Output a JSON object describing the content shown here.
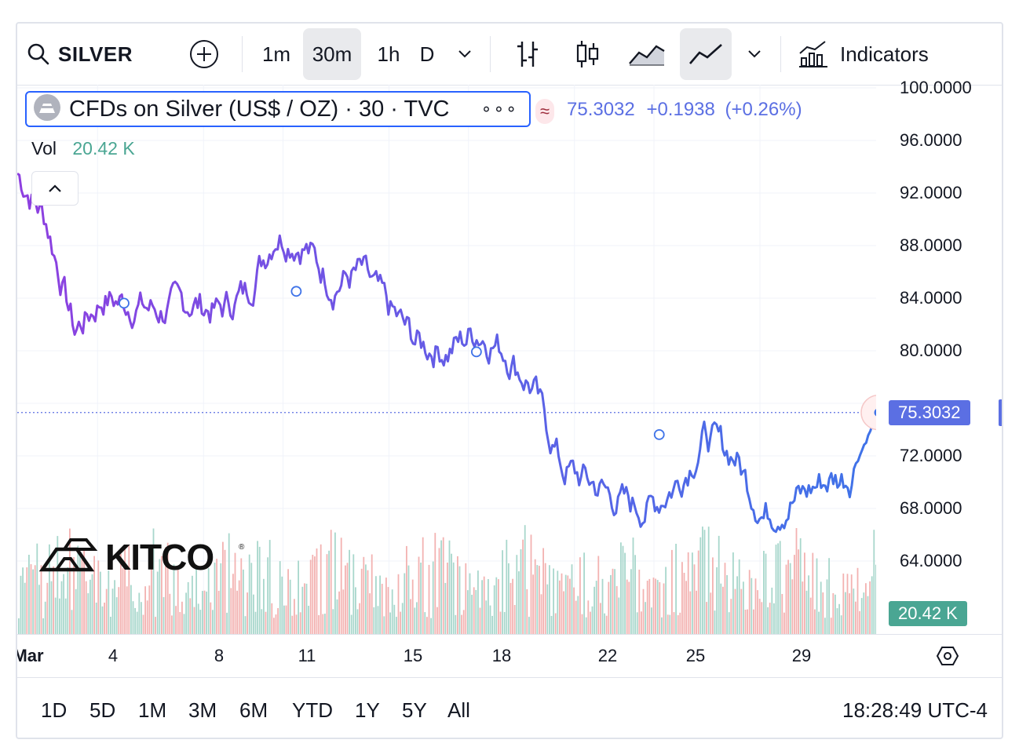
{
  "toolbar": {
    "symbol": "SILVER",
    "intervals": [
      "1m",
      "30m",
      "1h",
      "D"
    ],
    "active_interval": "30m",
    "indicators_label": "Indicators"
  },
  "legend": {
    "title": "CFDs on Silver (US$ / OZ) · 30 · TVC",
    "last": "75.3032",
    "change": "+0.1938",
    "change_pct": "(+0.26%)",
    "vol_label": "Vol",
    "vol_value": "20.42 K"
  },
  "price_scale": {
    "labels": [
      "100.0000",
      "96.0000",
      "92.0000",
      "88.0000",
      "84.0000",
      "80.0000",
      "72.0000",
      "68.0000",
      "64.0000"
    ],
    "last_price_badge": "75.3032",
    "volume_badge": "20.42 K"
  },
  "time_axis": {
    "labels": [
      "Mar",
      "4",
      "8",
      "11",
      "15",
      "18",
      "22",
      "25",
      "29"
    ]
  },
  "ranges": [
    "1D",
    "5D",
    "1M",
    "3M",
    "6M",
    "YTD",
    "1Y",
    "5Y",
    "All"
  ],
  "clock": "18:28:49 UTC-4",
  "watermark": "KITCO",
  "colors": {
    "line_start": "#8e3fe0",
    "line_end": "#3f73e8",
    "last_badge": "#5b6fe3",
    "volume_badge": "#4aa693",
    "vol_up": "#9fd3c6",
    "vol_down": "#f2aaa9",
    "value_text": "#5b6fe3",
    "vol_text": "#4aa693",
    "active_bg": "#e9eaed"
  },
  "chart_data": {
    "type": "line",
    "ylim": [
      60,
      100
    ],
    "x": [
      "Mar 1",
      "Mar 2",
      "Mar 3",
      "Mar 4",
      "Mar 5",
      "Mar 6",
      "Mar 7",
      "Mar 8",
      "Mar 9",
      "Mar 10",
      "Mar 11",
      "Mar 12",
      "Mar 13",
      "Mar 14",
      "Mar 15",
      "Mar 16",
      "Mar 17",
      "Mar 18",
      "Mar 19",
      "Mar 20",
      "Mar 21",
      "Mar 22",
      "Mar 23",
      "Mar 24",
      "Mar 25",
      "Mar 26",
      "Mar 27",
      "Mar 28",
      "Mar 29",
      "Mar 30",
      "Mar 31"
    ],
    "series": [
      {
        "values": [
          93.5,
          90.0,
          81.5,
          84.0,
          83.5,
          83.0,
          83.7,
          83.0,
          84.5,
          89.0,
          88.0,
          85.0,
          86.0,
          83.0,
          80.5,
          80.0,
          81.5,
          80.0,
          77.0,
          71.0,
          70.0,
          68.5,
          68.0,
          70.0,
          73.5,
          72.0,
          67.5,
          68.5,
          70.0,
          70.5,
          75.3
        ]
      }
    ],
    "volume": {
      "series_label": "Vol",
      "last": "20.42 K"
    }
  }
}
